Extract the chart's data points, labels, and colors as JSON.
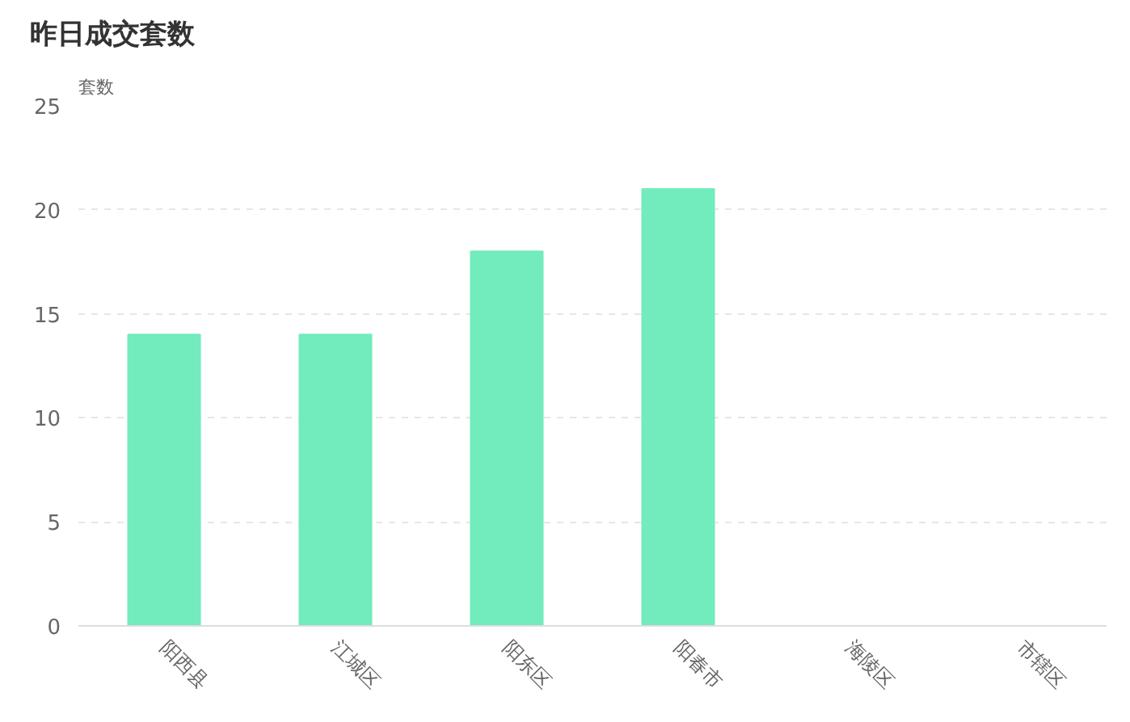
{
  "chart_data": {
    "type": "bar",
    "title": "昨日成交套数",
    "ylabel": "套数",
    "categories": [
      "阳西县",
      "江城区",
      "阳东区",
      "阳春市",
      "海陵区",
      "市辖区"
    ],
    "values": [
      14,
      14,
      18,
      21,
      0,
      0
    ],
    "color": "#72ebbd",
    "ylim": [
      0,
      25
    ],
    "yticks": [
      0,
      5,
      10,
      15,
      20,
      25
    ],
    "grid": "y"
  }
}
